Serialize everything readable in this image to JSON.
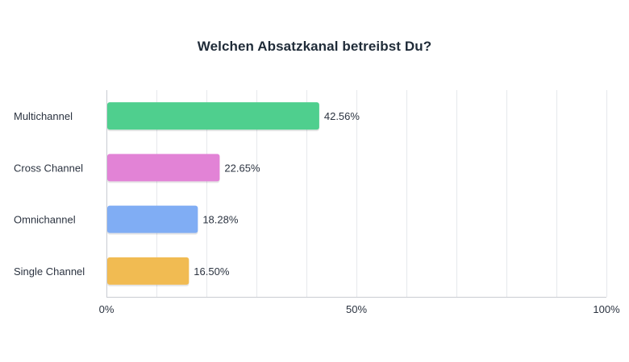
{
  "chart_data": {
    "type": "bar",
    "orientation": "horizontal",
    "title": "Welchen Absatzkanal betreibst Du?",
    "xlabel": "",
    "ylabel": "",
    "categories": [
      "Multichannel",
      "Cross Channel",
      "Omnichannel",
      "Single Channel"
    ],
    "values": [
      42.56,
      22.65,
      18.28,
      16.5
    ],
    "value_labels": [
      "42.56%",
      "22.65%",
      "18.28%",
      "16.50%"
    ],
    "colors": [
      "#4fcf8e",
      "#e283d6",
      "#80adf4",
      "#f1bb52"
    ],
    "xlim": [
      0,
      100
    ],
    "x_ticks": [
      0,
      50,
      100
    ],
    "x_tick_labels": [
      "0%",
      "50%",
      "100%"
    ],
    "grid": true,
    "legend": "none"
  }
}
